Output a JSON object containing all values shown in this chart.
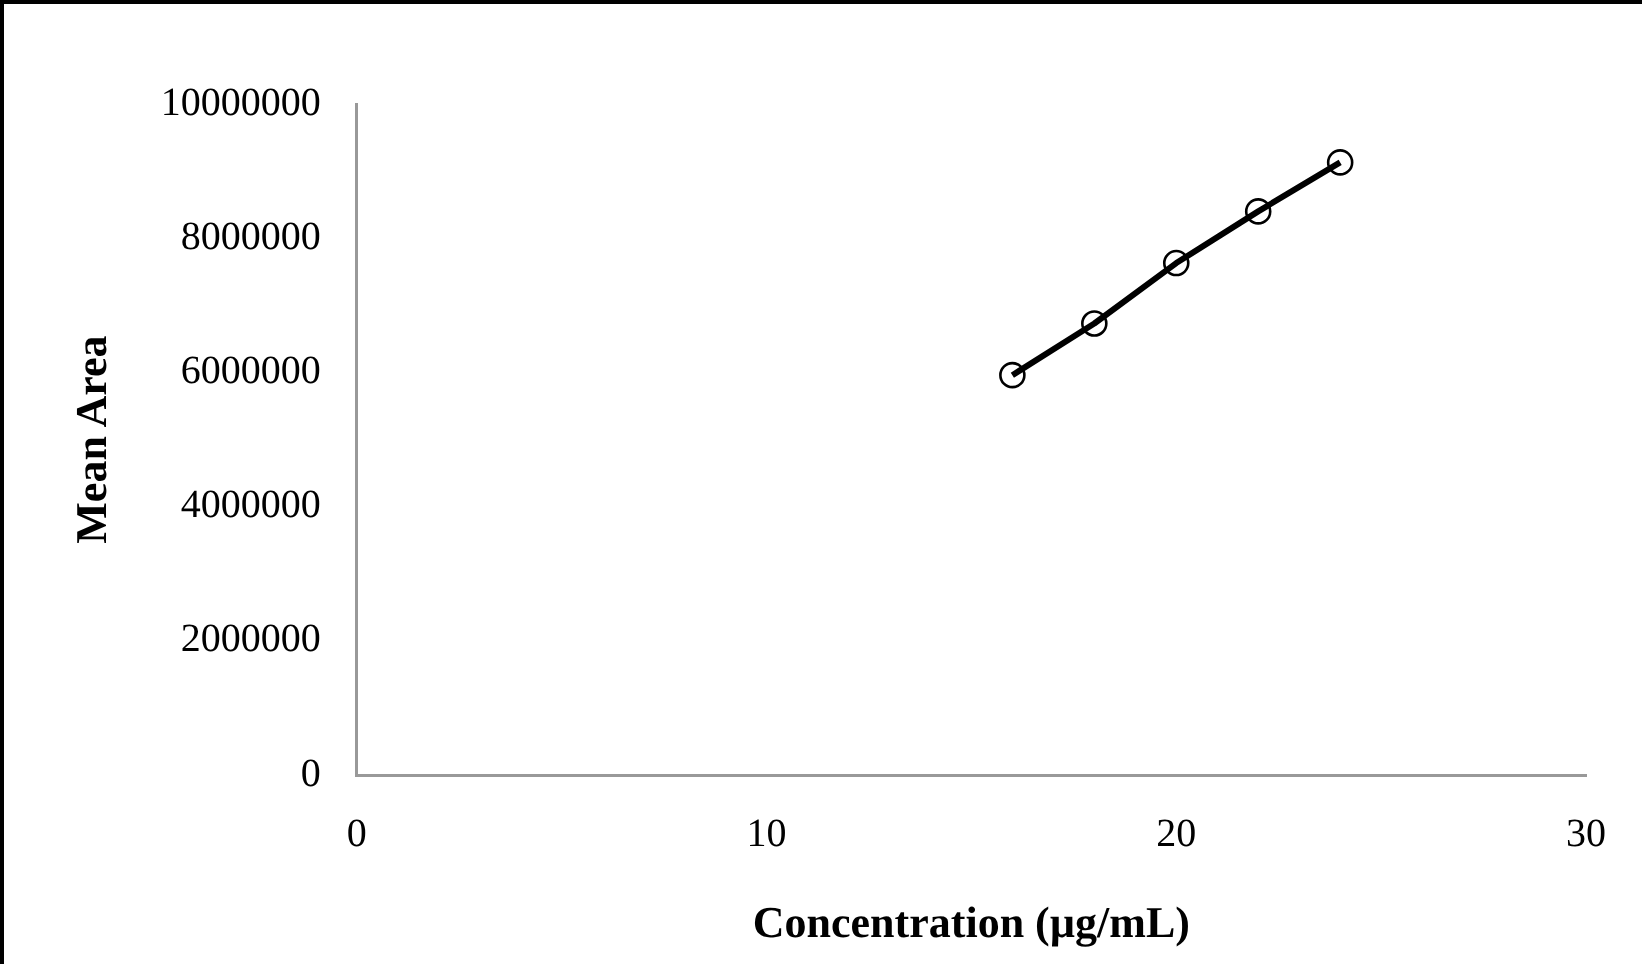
{
  "chart_data": {
    "type": "line",
    "xlabel": "Concentration (µg/mL)",
    "ylabel": "Mean Area",
    "x": [
      16,
      18,
      20,
      22,
      24
    ],
    "series": [
      {
        "color": "#000000",
        "values": [
          5960000,
          6730000,
          7630000,
          8400000,
          9130000
        ]
      }
    ],
    "xlim": [
      0,
      30
    ],
    "xticks": [
      0,
      10,
      20,
      30
    ],
    "ylim": [
      0,
      10000000
    ],
    "yticks": [
      0,
      2000000,
      4000000,
      6000000,
      8000000,
      10000000
    ],
    "grid": false,
    "legend": false,
    "marker": "circle",
    "line_style": "solid"
  }
}
